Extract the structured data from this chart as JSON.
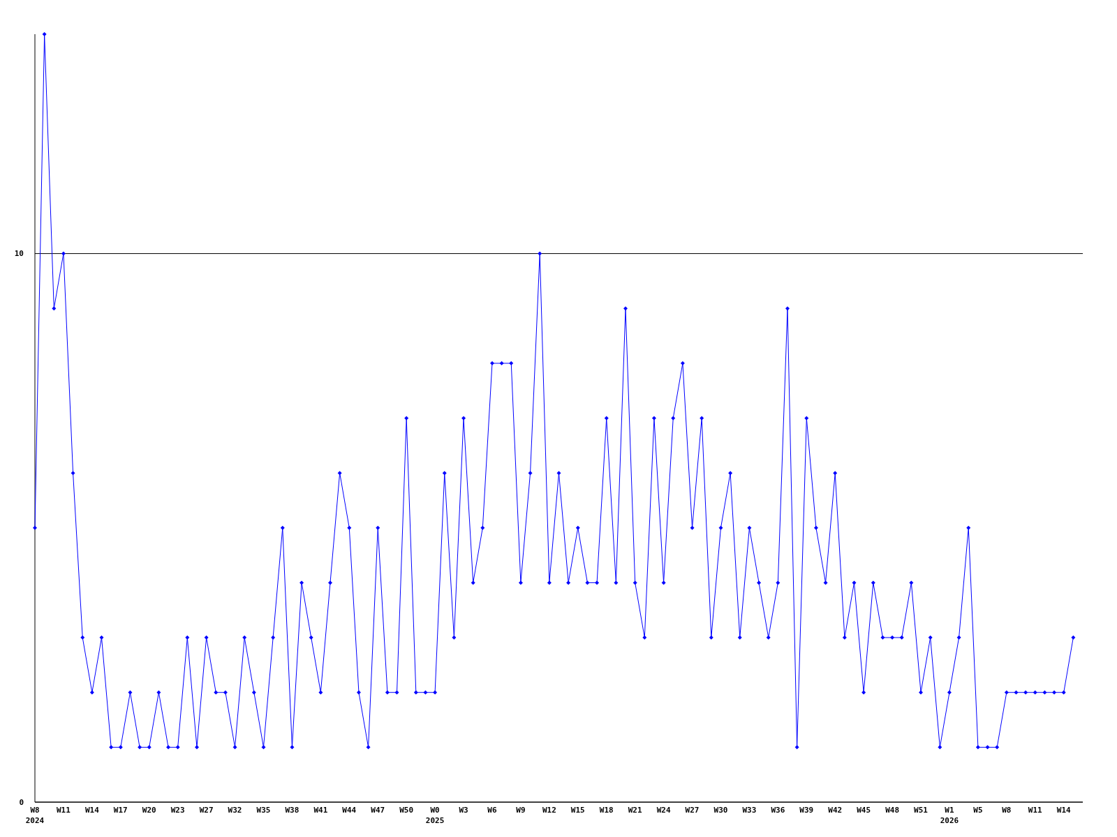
{
  "chart_data": {
    "type": "line",
    "categories": [
      "W8\n2024",
      null,
      null,
      "W11",
      null,
      null,
      "W14",
      null,
      null,
      "W17",
      null,
      null,
      "W20",
      null,
      null,
      "W23",
      null,
      null,
      "W27",
      null,
      null,
      "W32",
      null,
      null,
      "W35",
      null,
      null,
      "W38",
      null,
      null,
      "W41",
      null,
      null,
      "W44",
      null,
      null,
      "W47",
      null,
      null,
      "W50",
      null,
      null,
      "W0\n2025",
      null,
      null,
      "W3",
      null,
      null,
      "W6",
      null,
      null,
      "W9",
      null,
      null,
      "W12",
      null,
      null,
      "W15",
      null,
      null,
      "W18",
      null,
      null,
      "W21",
      null,
      null,
      "W24",
      null,
      null,
      "W27",
      null,
      null,
      "W30",
      null,
      null,
      "W33",
      null,
      null,
      "W36",
      null,
      null,
      "W39",
      null,
      null,
      "W42",
      null,
      null,
      "W45",
      null,
      null,
      "W48",
      null,
      null,
      "W51",
      null,
      null,
      "W1\n2026",
      null,
      null,
      "W5",
      null,
      null,
      "W8",
      null,
      null,
      "W11",
      null,
      null,
      "W14",
      null
    ],
    "series": [
      {
        "color": "#0000ff",
        "values": [
          5,
          14,
          9,
          10,
          6,
          3,
          2,
          3,
          1,
          1,
          2,
          1,
          1,
          2,
          1,
          1,
          3,
          1,
          3,
          2,
          2,
          1,
          3,
          2,
          1,
          3,
          5,
          1,
          4,
          3,
          2,
          4,
          6,
          5,
          2,
          1,
          5,
          2,
          2,
          7,
          2,
          2,
          2,
          6,
          3,
          7,
          4,
          5,
          8,
          8,
          8,
          4,
          6,
          10,
          4,
          6,
          4,
          5,
          4,
          4,
          7,
          4,
          9,
          4,
          3,
          7,
          4,
          7,
          8,
          5,
          7,
          3,
          5,
          6,
          3,
          5,
          4,
          3,
          4,
          9,
          1,
          7,
          5,
          4,
          6,
          3,
          4,
          2,
          4,
          3,
          3,
          3,
          4,
          2,
          3,
          1,
          2,
          3,
          5,
          1,
          1,
          1,
          2,
          2,
          2,
          2,
          2,
          2,
          2,
          3
        ]
      }
    ],
    "ylim": [
      0,
      14
    ],
    "yticks": [
      0,
      10
    ],
    "grid": "y",
    "marker": "diamond",
    "line_style": "solid"
  }
}
